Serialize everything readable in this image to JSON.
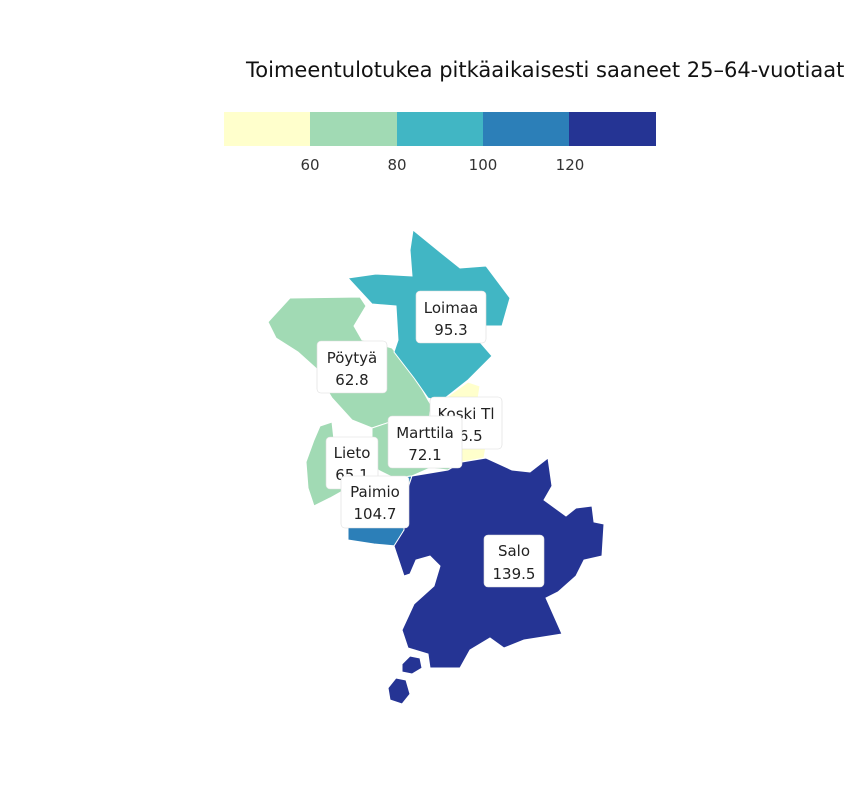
{
  "chart_data": {
    "type": "choropleth",
    "title": "Toimeentulotukea pitkäaikaisesti saaneet 25–64-vuotiaat",
    "legend": {
      "placement": "top",
      "breaks": [
        60,
        80,
        100,
        120
      ],
      "tick_labels": [
        "60",
        "80",
        "100",
        "120"
      ],
      "colors": [
        "#ffffcc",
        "#a1dab4",
        "#41b6c4",
        "#2c7fb8",
        "#253494"
      ]
    },
    "regions": [
      {
        "name": "Loimaa",
        "value": 95.3,
        "value_label": "95.3",
        "color": "#41b6c4"
      },
      {
        "name": "Pöytyä",
        "value": 62.8,
        "value_label": "62.8",
        "color": "#a1dab4"
      },
      {
        "name": "Koski Tl",
        "value": 56.5,
        "value_label": "56.5",
        "color": "#ffffcc"
      },
      {
        "name": "Marttila",
        "value": 72.1,
        "value_label": "72.1",
        "color": "#a1dab4"
      },
      {
        "name": "Lieto",
        "value": 65.1,
        "value_label": "65.1",
        "color": "#a1dab4"
      },
      {
        "name": "Paimio",
        "value": 104.7,
        "value_label": "104.7",
        "color": "#2c7fb8"
      },
      {
        "name": "Salo",
        "value": 139.5,
        "value_label": "139.5",
        "color": "#253494"
      }
    ]
  }
}
